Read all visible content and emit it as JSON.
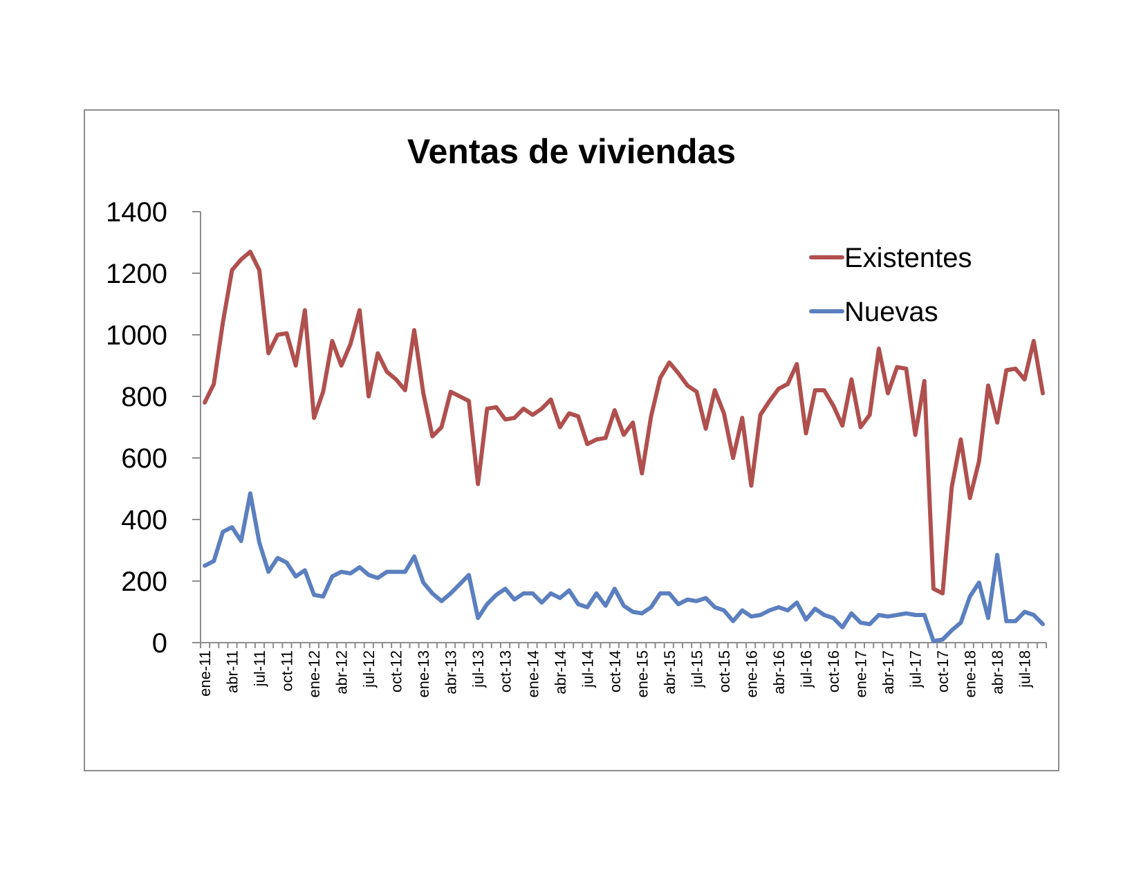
{
  "chart_data": {
    "type": "line",
    "title": "Ventas de viviendas",
    "xlabel": "",
    "ylabel": "",
    "ylim": [
      0,
      1400
    ],
    "y_ticks": [
      "0",
      "200",
      "400",
      "600",
      "800",
      "1000",
      "1200",
      "1400"
    ],
    "x_tick_labels": [
      "ene-11",
      "abr-11",
      "jul-11",
      "oct-11",
      "ene-12",
      "abr-12",
      "jul-12",
      "oct-12",
      "ene-13",
      "abr-13",
      "jul-13",
      "oct-13",
      "ene-14",
      "abr-14",
      "jul-14",
      "oct-14",
      "ene-15",
      "abr-15",
      "jul-15",
      "oct-15",
      "ene-16",
      "abr-16",
      "jul-16",
      "oct-16",
      "ene-17",
      "abr-17",
      "jul-17",
      "oct-17",
      "ene-18",
      "abr-18",
      "jul-18"
    ],
    "x_range": [
      "ene-11",
      "oct-18"
    ],
    "grid": false,
    "legend_position": "top-right",
    "series": [
      {
        "name": "Existentes",
        "color": "#b0504e",
        "values": [
          780,
          840,
          1040,
          1210,
          1245,
          1270,
          1210,
          940,
          1000,
          1005,
          900,
          1080,
          730,
          815,
          980,
          900,
          970,
          1080,
          800,
          940,
          880,
          855,
          820,
          1015,
          810,
          670,
          700,
          815,
          800,
          785,
          515,
          760,
          765,
          725,
          730,
          760,
          740,
          760,
          790,
          700,
          745,
          735,
          645,
          660,
          665,
          755,
          675,
          715,
          550,
          735,
          860,
          910,
          875,
          835,
          815,
          695,
          820,
          745,
          600,
          730,
          510,
          740,
          785,
          825,
          840,
          905,
          680,
          820,
          820,
          770,
          705,
          855,
          700,
          740,
          955,
          810,
          895,
          890,
          675,
          850,
          175,
          160,
          505,
          660,
          470,
          590,
          835,
          715,
          885,
          890,
          855,
          980,
          810
        ]
      },
      {
        "name": "Nuevas",
        "color": "#5b7fbf",
        "values": [
          250,
          265,
          360,
          375,
          330,
          485,
          325,
          230,
          275,
          260,
          215,
          235,
          155,
          150,
          215,
          230,
          225,
          245,
          220,
          210,
          230,
          230,
          230,
          280,
          195,
          160,
          135,
          160,
          190,
          220,
          80,
          125,
          155,
          175,
          140,
          160,
          160,
          130,
          160,
          145,
          170,
          125,
          115,
          160,
          120,
          175,
          120,
          100,
          95,
          115,
          160,
          160,
          125,
          140,
          135,
          145,
          115,
          105,
          70,
          105,
          85,
          90,
          105,
          115,
          105,
          130,
          75,
          110,
          90,
          80,
          50,
          95,
          65,
          60,
          90,
          85,
          90,
          95,
          90,
          90,
          5,
          10,
          40,
          65,
          150,
          195,
          80,
          285,
          70,
          70,
          100,
          90,
          60
        ]
      }
    ]
  }
}
